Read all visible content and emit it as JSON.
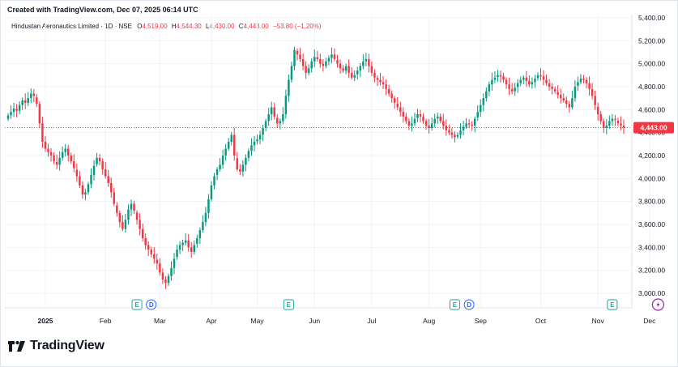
{
  "header": {
    "created_text": "Created with TradingView.com, Dec 07, 2025 06:14 UTC"
  },
  "legend": {
    "symbol": "Hindustan Aeronautics Limited · 1D · NSE",
    "open_label": "O",
    "open_value": "4,519.00",
    "high_label": "H",
    "high_value": "4,544.30",
    "low_label": "L",
    "low_value": "4,430.00",
    "close_label": "C",
    "close_value": "4,443.00",
    "change_value": "−53.80 (−1.20%)"
  },
  "price_tag": "4,443.00",
  "logo": {
    "text": "TradingView"
  },
  "colors": {
    "up": "#089981",
    "down": "#f23645",
    "grid": "#f0f3fa",
    "text": "#131722",
    "event_earnings": "#26a69a",
    "event_dividend": "#2962ff",
    "event_split": "#9c27b0"
  },
  "chart_data": {
    "type": "candlestick",
    "y_ticks": [
      "5,400.00",
      "5,200.00",
      "5,000.00",
      "4,800.00",
      "4,600.00",
      "4,400.00",
      "4,200.00",
      "4,000.00",
      "3,800.00",
      "3,600.00",
      "3,400.00",
      "3,200.00",
      "3,000.00"
    ],
    "ylim": [
      2900,
      5400
    ],
    "x_ticks": [
      {
        "label": "2025",
        "index": 13
      },
      {
        "label": "Feb",
        "index": 34
      },
      {
        "label": "Mar",
        "index": 53
      },
      {
        "label": "Apr",
        "index": 71
      },
      {
        "label": "May",
        "index": 87
      },
      {
        "label": "Jun",
        "index": 107
      },
      {
        "label": "Jul",
        "index": 127
      },
      {
        "label": "Aug",
        "index": 147
      },
      {
        "label": "Sep",
        "index": 165
      },
      {
        "label": "Oct",
        "index": 186
      },
      {
        "label": "Nov",
        "index": 206
      },
      {
        "label": "Dec",
        "index": 224
      }
    ],
    "events": [
      {
        "type": "E",
        "index": 45
      },
      {
        "type": "D",
        "index": 50
      },
      {
        "type": "E",
        "index": 98
      },
      {
        "type": "E",
        "index": 156
      },
      {
        "type": "D",
        "index": 161
      },
      {
        "type": "E",
        "index": 211
      },
      {
        "type": "S",
        "index": 227
      }
    ],
    "last_close": 4443,
    "close": [
      4550,
      4580,
      4610,
      4590,
      4640,
      4680,
      4660,
      4700,
      4740,
      4720,
      4650,
      4480,
      4320,
      4260,
      4230,
      4200,
      4150,
      4120,
      4180,
      4230,
      4260,
      4200,
      4150,
      4090,
      4020,
      3940,
      3860,
      3880,
      3950,
      4030,
      4110,
      4180,
      4150,
      4080,
      4020,
      3960,
      3880,
      3780,
      3700,
      3620,
      3560,
      3640,
      3730,
      3780,
      3720,
      3640,
      3560,
      3480,
      3420,
      3380,
      3340,
      3300,
      3260,
      3180,
      3120,
      3090,
      3150,
      3220,
      3300,
      3380,
      3420,
      3440,
      3460,
      3400,
      3360,
      3420,
      3480,
      3550,
      3620,
      3700,
      3820,
      3940,
      4020,
      4080,
      4120,
      4200,
      4260,
      4320,
      4380,
      4200,
      4080,
      4060,
      4120,
      4180,
      4240,
      4290,
      4320,
      4340,
      4380,
      4440,
      4500,
      4560,
      4620,
      4540,
      4480,
      4500,
      4560,
      4720,
      4860,
      4980,
      5120,
      5080,
      5040,
      4980,
      4920,
      4960,
      5020,
      5060,
      5040,
      5000,
      4980,
      5020,
      5050,
      5080,
      5040,
      5000,
      4960,
      4940,
      4980,
      4920,
      4880,
      4900,
      4940,
      4980,
      5020,
      5040,
      4980,
      4920,
      4880,
      4860,
      4840,
      4820,
      4780,
      4740,
      4700,
      4660,
      4620,
      4580,
      4540,
      4500,
      4460,
      4480,
      4520,
      4560,
      4540,
      4500,
      4460,
      4440,
      4480,
      4520,
      4540,
      4500,
      4460,
      4420,
      4400,
      4380,
      4360,
      4380,
      4420,
      4450,
      4480,
      4470,
      4460,
      4520,
      4580,
      4640,
      4700,
      4760,
      4820,
      4860,
      4880,
      4900,
      4890,
      4860,
      4820,
      4780,
      4760,
      4790,
      4830,
      4860,
      4880,
      4850,
      4820,
      4840,
      4870,
      4900,
      4890,
      4860,
      4830,
      4800,
      4780,
      4760,
      4730,
      4700,
      4680,
      4650,
      4620,
      4700,
      4800,
      4840,
      4870,
      4860,
      4830,
      4780,
      4720,
      4640,
      4560,
      4500,
      4440,
      4460,
      4500,
      4520,
      4510,
      4480,
      4460,
      4443
    ]
  }
}
